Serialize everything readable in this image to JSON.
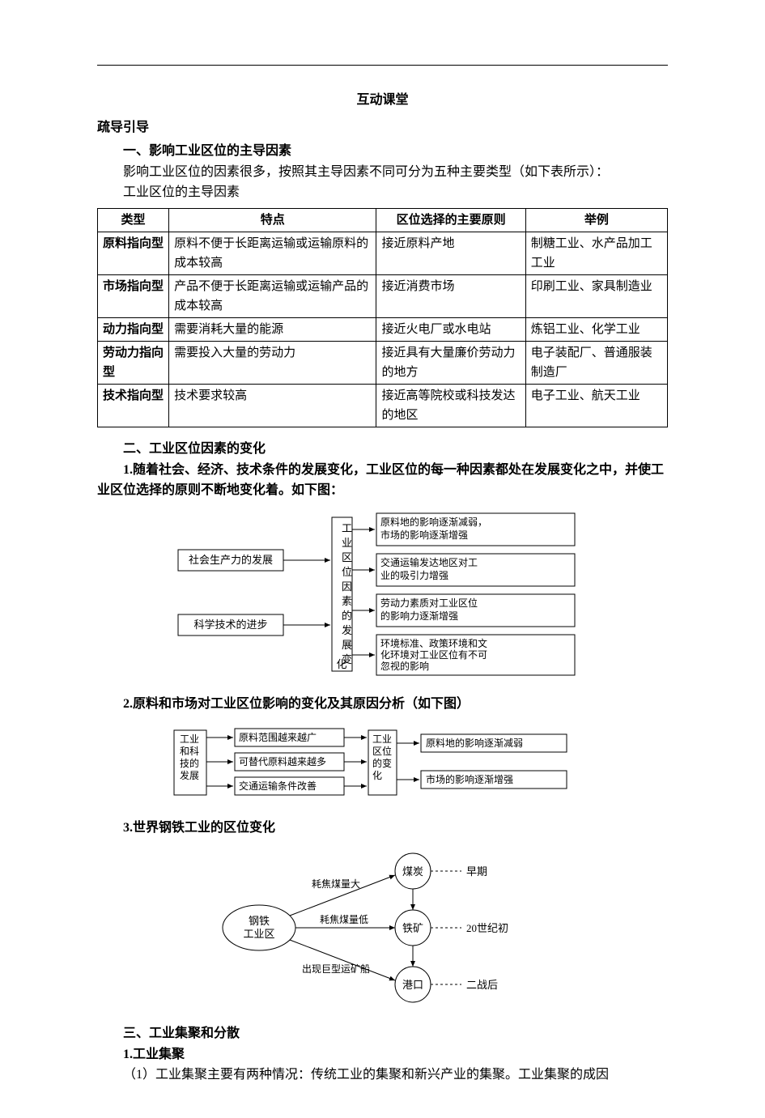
{
  "colors": {
    "text": "#000000",
    "bg": "#ffffff",
    "border": "#000000"
  },
  "typography": {
    "body_font": "SimSun",
    "body_size": 16,
    "table_size": 15,
    "diagram_label": 13
  },
  "title": "互动课堂",
  "section0": "疏导引导",
  "section1": {
    "heading": "一、影响工业区位的主导因素",
    "intro": "影响工业区位的因素很多，按照其主导因素不同可分为五种主要类型（如下表所示）：",
    "caption": "工业区位的主导因素"
  },
  "table": {
    "columns": [
      "类型",
      "特点",
      "区位选择的主要原则",
      "举例"
    ],
    "rows": [
      [
        "原料指向型",
        "原料不便于长距离运输或运输原料的成本较高",
        "接近原料产地",
        "制糖工业、水产品加工工业"
      ],
      [
        "市场指向型",
        "产品不便于长距离运输或运输产品的成本较高",
        "接近消费市场",
        "印刷工业、家具制造业"
      ],
      [
        "动力指向型",
        "需要消耗大量的能源",
        "接近火电厂或水电站",
        "炼铝工业、化学工业"
      ],
      [
        "劳动力指向型",
        "需要投入大量的劳动力",
        "接近具有大量廉价劳动力的地方",
        "电子装配厂、普通服装制造厂"
      ],
      [
        "技术指向型",
        "技术要求较高",
        "接近高等院校或科技发达的地区",
        "电子工业、航天工业"
      ]
    ]
  },
  "section2": {
    "heading": "二、工业区位因素的变化",
    "p1": "1.随着社会、经济、技术条件的发展变化，工业区位的每一种因素都处在发展变化之中，并使工业区位选择的原则不断地变化着。如下图：",
    "p2": "2.原料和市场对工业区位影响的变化及其原因分析（如下图）",
    "p3": "3.世界钢铁工业的区位变化"
  },
  "diagram1": {
    "type": "flowchart",
    "left_nodes": [
      "社会生产力的发展",
      "科学技术的进步"
    ],
    "center_node": "工业区位因素的发展变化",
    "right_nodes": [
      "原料地的影响逐渐减弱，市场的影响逐渐增强",
      "交通运输发达地区对工业的吸引力增强",
      "劳动力素质对工业区位的影响力逐渐增强",
      "环境标准、政策环境和文化环境对工业区位有不可忽视的影响"
    ]
  },
  "diagram2": {
    "type": "flowchart",
    "left_node": "工业和科技的发展",
    "mid_nodes": [
      "原料范围越来越广",
      "可替代原料越来越多",
      "交通运输条件改善"
    ],
    "center_node": "工业区位的变化",
    "right_nodes": [
      "原料地的影响逐渐减弱",
      "市场的影响逐渐增强"
    ]
  },
  "diagram3": {
    "type": "network",
    "source": "钢铁工业区",
    "targets": [
      {
        "label": "煤炭",
        "edge": "耗焦煤量大",
        "note": "早期"
      },
      {
        "label": "铁矿",
        "edge": "耗焦煤量低",
        "note": "20世纪初"
      },
      {
        "label": "港口",
        "edge": "出现巨型运矿船",
        "note": "二战后"
      }
    ]
  },
  "section3": {
    "heading": "三、工业集聚和分散",
    "p1": "1.工业集聚",
    "p2": "（1）工业集聚主要有两种情况：传统工业的集聚和新兴产业的集聚。工业集聚的成因"
  }
}
